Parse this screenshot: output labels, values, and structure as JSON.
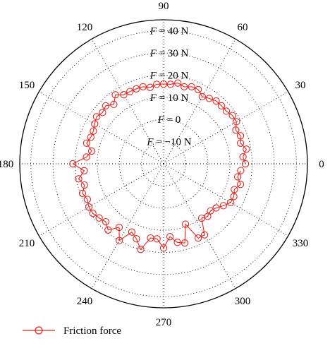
{
  "chart_data": {
    "type": "polar-line",
    "angle_unit": "degrees",
    "angle_ticks": [
      "0",
      "30",
      "60",
      "90",
      "120",
      "150",
      "180",
      "210",
      "240",
      "270",
      "300",
      "330"
    ],
    "ring_values": [
      -10,
      0,
      10,
      20,
      30,
      40
    ],
    "ring_labels": [
      {
        "var": "F",
        "rest": " = −10 N"
      },
      {
        "var": "F",
        "rest": " = 0"
      },
      {
        "var": "F",
        "rest": " = 10 N"
      },
      {
        "var": "F",
        "rest": " = 20 N"
      },
      {
        "var": "F",
        "rest": " = 30 N"
      },
      {
        "var": "F",
        "rest": " = 40 N"
      }
    ],
    "r_range": [
      -20,
      45
    ],
    "grid": true,
    "legend_position": "bottom-left",
    "series": [
      {
        "name": "Friction force",
        "color": "#e8251f",
        "marker": "open-circle",
        "theta": [
          0,
          5,
          10,
          15,
          20,
          25,
          30,
          35,
          40,
          45,
          50,
          55,
          60,
          65,
          70,
          75,
          80,
          85,
          90,
          95,
          100,
          105,
          110,
          115,
          120,
          125,
          130,
          135,
          140,
          145,
          150,
          155,
          160,
          165,
          170,
          175,
          180,
          185,
          190,
          195,
          200,
          205,
          210,
          215,
          220,
          225,
          230,
          235,
          240,
          245,
          250,
          255,
          260,
          265,
          270,
          275,
          280,
          285,
          290,
          295,
          300,
          305,
          310,
          315,
          320,
          325,
          330,
          335,
          340,
          345,
          350,
          355
        ],
        "r": [
          17,
          16,
          18,
          16,
          17,
          16,
          18,
          18,
          17,
          17,
          17,
          16,
          15,
          17,
          17,
          16,
          17,
          16,
          16,
          16,
          15,
          16,
          16,
          16,
          16,
          18,
          15,
          17,
          16,
          17,
          16,
          15,
          15,
          16,
          13,
          15,
          21,
          16,
          19,
          17,
          19,
          18,
          19,
          19,
          18,
          17,
          19,
          15,
          20,
          14,
          16,
          20,
          14,
          14,
          18,
          13,
          16,
          17,
          9,
          17,
          17,
          10,
          11,
          10,
          11,
          13,
          15,
          15,
          14,
          16,
          14,
          15
        ]
      }
    ]
  }
}
